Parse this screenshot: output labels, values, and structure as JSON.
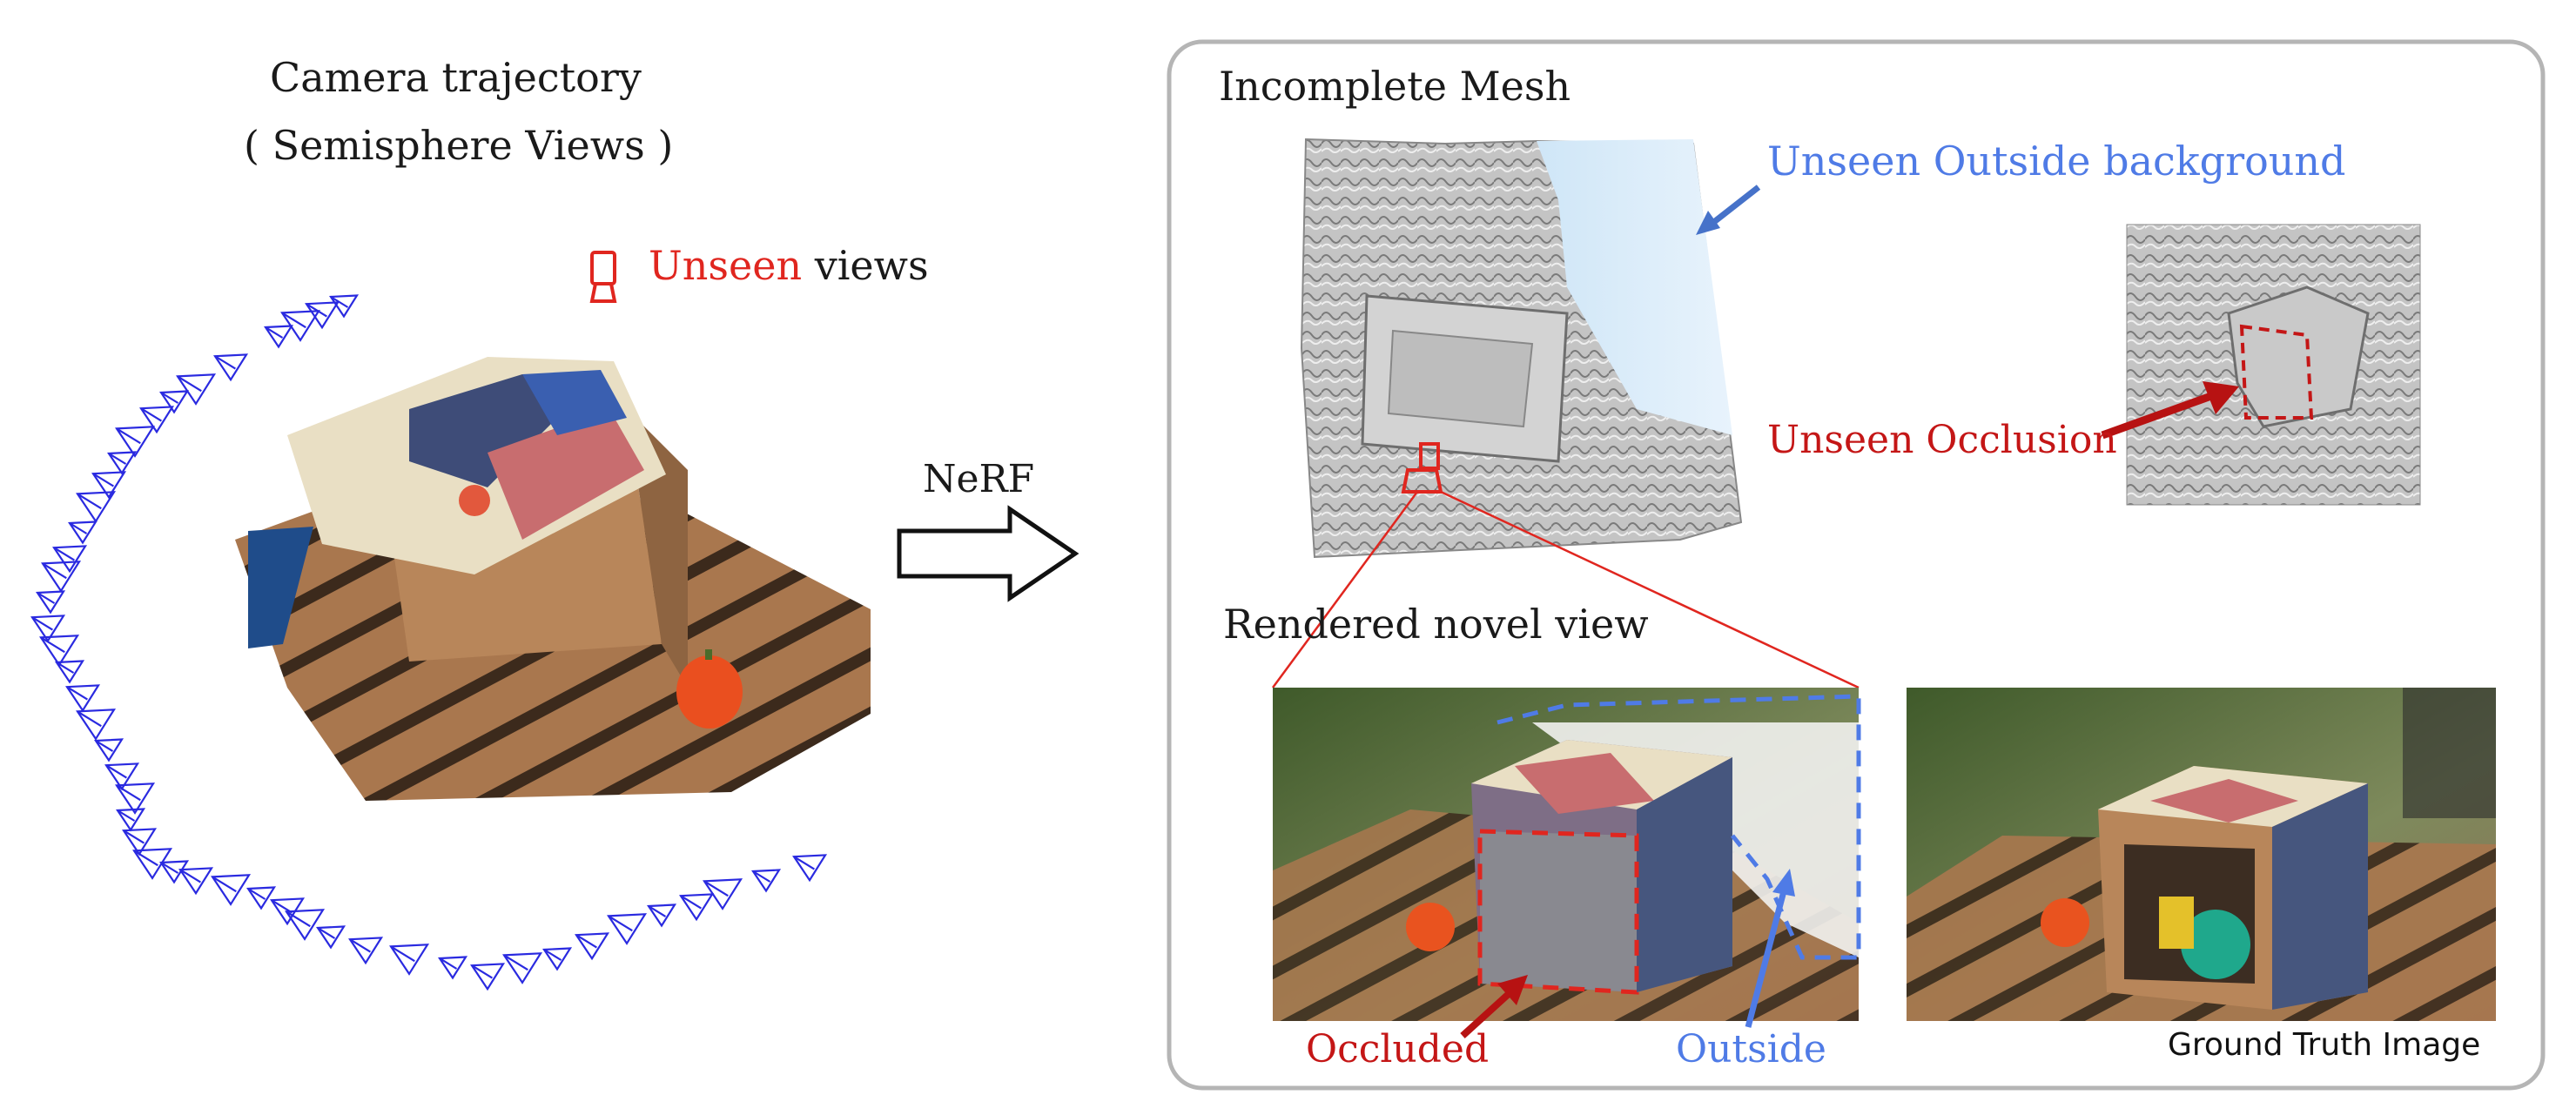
{
  "left": {
    "title_line1": "Camera trajectory",
    "title_line2": "( Semisphere Views )",
    "legend_red": "Unseen",
    "legend_rest": " views"
  },
  "arrow_label": "NeRF",
  "panel": {
    "mesh_title": "Incomplete Mesh",
    "render_title": "Rendered novel view",
    "unseen_background_label": "Unseen Outside background",
    "unseen_occlusion_label": "Unseen Occlusion",
    "occluded_label": "Occluded",
    "outside_label": "Outside",
    "ground_truth_label": "Ground Truth Image"
  },
  "colors": {
    "camera": "#2a2ae0",
    "red_accent": "#c41616",
    "blue_accent": "#4f7be6",
    "panel_border": "#b5b5b5"
  }
}
